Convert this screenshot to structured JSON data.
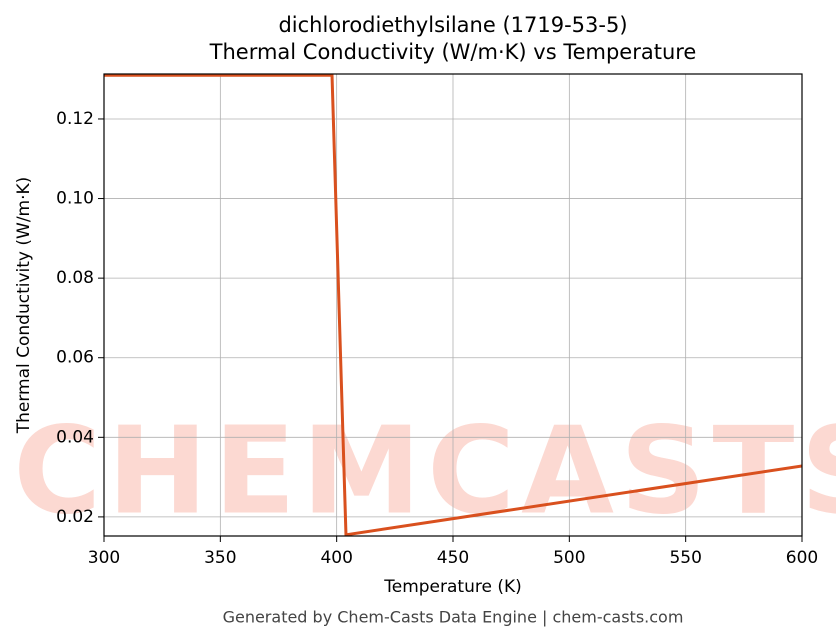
{
  "chart_data": {
    "type": "line",
    "title": "dichlorodiethylsilane (1719-53-5)",
    "subtitle": "Thermal Conductivity (W/m·K) vs Temperature",
    "x_label": "Temperature (K)",
    "y_label": "Thermal Conductivity (W/m·K)",
    "footer": "Generated by Chem-Casts Data Engine | chem-casts.com",
    "watermark": "CHEMCASTS",
    "x": [
      300,
      398,
      404,
      600
    ],
    "series": [
      {
        "name": "Thermal Conductivity",
        "color": "#d9501e",
        "values": [
          0.131,
          0.131,
          0.0155,
          0.0328
        ]
      }
    ],
    "xlim": [
      300,
      600
    ],
    "xticks": [
      300,
      350,
      400,
      450,
      500,
      550,
      600
    ],
    "ylim": [
      0.0152,
      0.1313
    ],
    "yticks": [
      {
        "value": 0.02,
        "label": "0.02"
      },
      {
        "value": 0.04,
        "label": "0.04"
      },
      {
        "value": 0.06,
        "label": "0.06"
      },
      {
        "value": 0.08,
        "label": "0.08"
      },
      {
        "value": 0.1,
        "label": "0.10"
      },
      {
        "value": 0.12,
        "label": "0.12"
      }
    ],
    "grid": true
  }
}
